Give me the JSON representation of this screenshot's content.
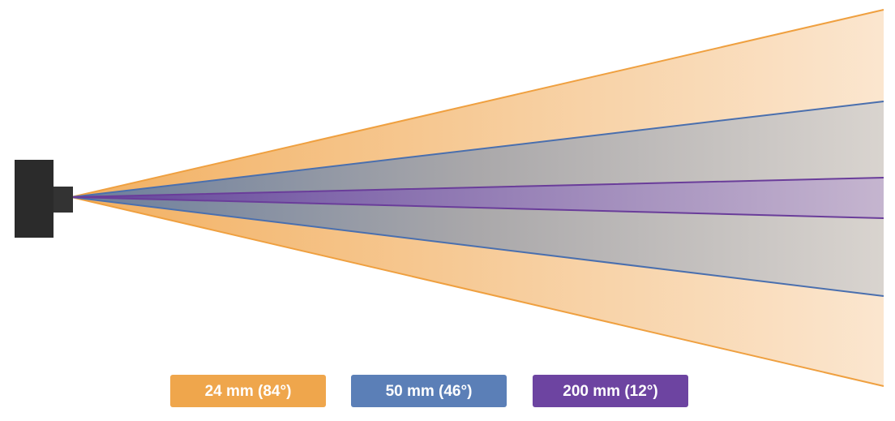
{
  "legend": {
    "items": [
      {
        "label": "24 mm (84°)",
        "color": "#efa64c"
      },
      {
        "label": "50 mm (46°)",
        "color": "#5b7fb7"
      },
      {
        "label": "200 mm (12°)",
        "color": "#6d44a1"
      }
    ]
  }
}
